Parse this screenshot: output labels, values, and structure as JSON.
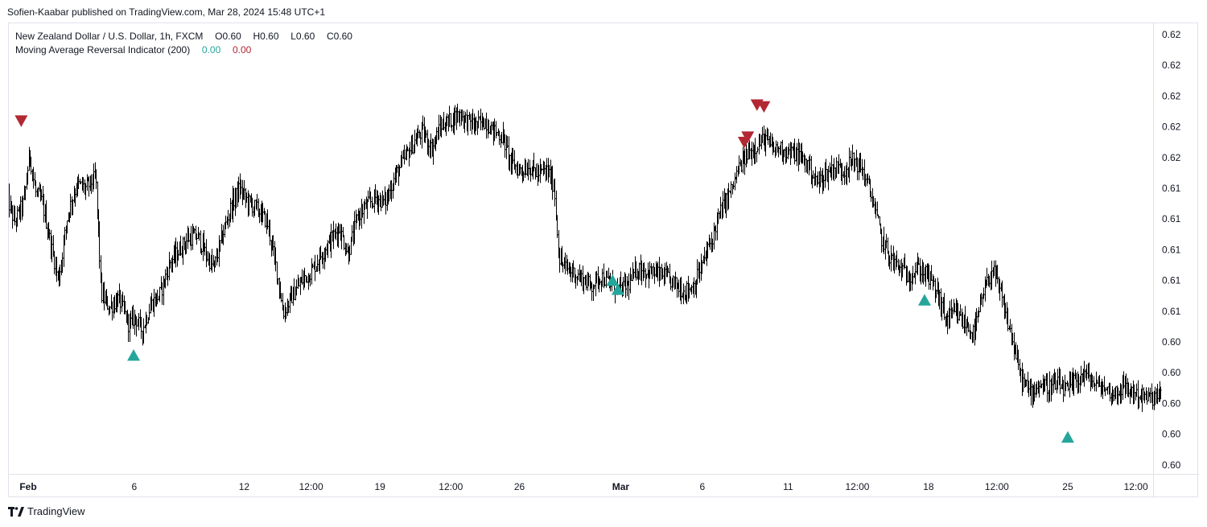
{
  "header": {
    "publish_line": "Sofien-Kaabar published on TradingView.com, Mar 28, 2024 15:48 UTC+1"
  },
  "legend": {
    "symbol_line": "New Zealand Dollar / U.S. Dollar, 1h, FXCM",
    "ohlc": {
      "open": "O0.60",
      "high": "H0.60",
      "low": "L0.60",
      "close": "C0.60"
    },
    "indicator_name": "Moving Average Reversal Indicator (200)",
    "indicator_value_up": "0.00",
    "indicator_value_down": "0.00"
  },
  "footer": {
    "brand": "TradingView"
  },
  "colors": {
    "up_marker": "#26a69a",
    "down_marker": "#b22833",
    "bars": "#000000",
    "border": "#e0e3eb"
  },
  "chart_data": {
    "type": "line",
    "title": "New Zealand Dollar / U.S. Dollar, 1h, FXCM",
    "y_tick_labels": [
      "0.62",
      "0.62",
      "0.62",
      "0.62",
      "0.62",
      "0.61",
      "0.61",
      "0.61",
      "0.61",
      "0.61",
      "0.60",
      "0.60",
      "0.60",
      "0.60",
      "0.60"
    ],
    "x_tick_labels": [
      {
        "label": "Feb",
        "bold": true,
        "t": 0.0
      },
      {
        "label": "6",
        "bold": false,
        "t": 4.58
      },
      {
        "label": "12",
        "bold": false,
        "t": 9.32
      },
      {
        "label": "12:00",
        "bold": false,
        "t": 12.21
      },
      {
        "label": "19",
        "bold": false,
        "t": 15.18
      },
      {
        "label": "12:00",
        "bold": false,
        "t": 18.24
      },
      {
        "label": "26",
        "bold": false,
        "t": 21.2
      },
      {
        "label": "Mar",
        "bold": true,
        "t": 25.57
      },
      {
        "label": "6",
        "bold": false,
        "t": 29.09
      },
      {
        "label": "11",
        "bold": false,
        "t": 32.79
      },
      {
        "label": "12:00",
        "bold": false,
        "t": 35.78
      },
      {
        "label": "18",
        "bold": false,
        "t": 38.85
      },
      {
        "label": "12:00",
        "bold": false,
        "t": 41.8
      },
      {
        "label": "25",
        "bold": false,
        "t": 44.86
      },
      {
        "label": "12:00",
        "bold": false,
        "t": 47.8
      }
    ],
    "price_path": [
      [
        -0.93,
        0.6115
      ],
      [
        -0.6,
        0.6101
      ],
      [
        -0.2,
        0.6112
      ],
      [
        0.05,
        0.614
      ],
      [
        0.3,
        0.6118
      ],
      [
        0.6,
        0.6112
      ],
      [
        0.95,
        0.609
      ],
      [
        1.3,
        0.6068
      ],
      [
        1.7,
        0.6106
      ],
      [
        2.1,
        0.6122
      ],
      [
        2.5,
        0.612
      ],
      [
        2.9,
        0.6126
      ],
      [
        3.15,
        0.606
      ],
      [
        3.5,
        0.6053
      ],
      [
        3.9,
        0.6058
      ],
      [
        4.35,
        0.6043
      ],
      [
        4.6,
        0.6048
      ],
      [
        4.9,
        0.604
      ],
      [
        5.3,
        0.6055
      ],
      [
        5.7,
        0.6061
      ],
      [
        6.1,
        0.6078
      ],
      [
        6.5,
        0.6085
      ],
      [
        6.9,
        0.6092
      ],
      [
        7.3,
        0.6093
      ],
      [
        7.7,
        0.6082
      ],
      [
        8.0,
        0.6075
      ],
      [
        8.3,
        0.609
      ],
      [
        8.7,
        0.6108
      ],
      [
        9.1,
        0.612
      ],
      [
        9.5,
        0.6112
      ],
      [
        9.9,
        0.6108
      ],
      [
        10.3,
        0.6101
      ],
      [
        10.7,
        0.6075
      ],
      [
        11.0,
        0.605
      ],
      [
        11.4,
        0.606
      ],
      [
        11.8,
        0.6068
      ],
      [
        12.2,
        0.6073
      ],
      [
        12.6,
        0.6082
      ],
      [
        13.0,
        0.609
      ],
      [
        13.4,
        0.6098
      ],
      [
        13.8,
        0.6083
      ],
      [
        14.2,
        0.6104
      ],
      [
        14.6,
        0.611
      ],
      [
        15.0,
        0.6115
      ],
      [
        15.4,
        0.6112
      ],
      [
        15.8,
        0.6126
      ],
      [
        16.2,
        0.6136
      ],
      [
        16.6,
        0.6145
      ],
      [
        17.0,
        0.6152
      ],
      [
        17.4,
        0.6142
      ],
      [
        17.8,
        0.6155
      ],
      [
        18.2,
        0.6158
      ],
      [
        18.6,
        0.6162
      ],
      [
        18.9,
        0.6158
      ],
      [
        19.3,
        0.6155
      ],
      [
        19.7,
        0.6158
      ],
      [
        20.1,
        0.6152
      ],
      [
        20.5,
        0.6148
      ],
      [
        20.8,
        0.6135
      ],
      [
        21.2,
        0.613
      ],
      [
        21.6,
        0.6132
      ],
      [
        22.0,
        0.6128
      ],
      [
        22.4,
        0.613
      ],
      [
        22.7,
        0.612
      ],
      [
        22.9,
        0.608
      ],
      [
        23.2,
        0.6075
      ],
      [
        23.6,
        0.6072
      ],
      [
        24.0,
        0.6068
      ],
      [
        24.3,
        0.6065
      ],
      [
        24.7,
        0.6071
      ],
      [
        25.1,
        0.6066
      ],
      [
        25.5,
        0.6063
      ],
      [
        25.9,
        0.6066
      ],
      [
        26.3,
        0.6075
      ],
      [
        26.7,
        0.6073
      ],
      [
        27.1,
        0.6072
      ],
      [
        27.5,
        0.607
      ],
      [
        27.9,
        0.6066
      ],
      [
        28.3,
        0.6062
      ],
      [
        28.7,
        0.6065
      ],
      [
        29.1,
        0.6078
      ],
      [
        29.5,
        0.6092
      ],
      [
        29.9,
        0.6108
      ],
      [
        30.3,
        0.6118
      ],
      [
        30.7,
        0.6132
      ],
      [
        31.1,
        0.614
      ],
      [
        31.5,
        0.6145
      ],
      [
        31.8,
        0.6148
      ],
      [
        32.1,
        0.6142
      ],
      [
        32.5,
        0.6142
      ],
      [
        32.9,
        0.614
      ],
      [
        33.3,
        0.6138
      ],
      [
        33.7,
        0.6132
      ],
      [
        34.0,
        0.6123
      ],
      [
        34.4,
        0.6128
      ],
      [
        34.8,
        0.6132
      ],
      [
        35.2,
        0.613
      ],
      [
        35.6,
        0.6136
      ],
      [
        36.0,
        0.613
      ],
      [
        36.4,
        0.6115
      ],
      [
        36.8,
        0.6092
      ],
      [
        37.2,
        0.6081
      ],
      [
        37.6,
        0.6075
      ],
      [
        38.0,
        0.6071
      ],
      [
        38.4,
        0.6075
      ],
      [
        38.8,
        0.6071
      ],
      [
        39.2,
        0.6062
      ],
      [
        39.6,
        0.6046
      ],
      [
        40.0,
        0.605
      ],
      [
        40.4,
        0.6044
      ],
      [
        40.8,
        0.6038
      ],
      [
        41.2,
        0.606
      ],
      [
        41.6,
        0.6075
      ],
      [
        42.0,
        0.6058
      ],
      [
        42.4,
        0.6038
      ],
      [
        42.8,
        0.6015
      ],
      [
        43.2,
        0.6005
      ],
      [
        43.6,
        0.601
      ],
      [
        44.0,
        0.6008
      ],
      [
        44.4,
        0.601
      ],
      [
        44.8,
        0.6006
      ],
      [
        45.2,
        0.6012
      ],
      [
        45.6,
        0.6016
      ],
      [
        46.0,
        0.601
      ],
      [
        46.4,
        0.6008
      ],
      [
        46.8,
        0.6004
      ],
      [
        47.2,
        0.6008
      ],
      [
        47.6,
        0.6006
      ],
      [
        48.0,
        0.6003
      ],
      [
        48.4,
        0.6002
      ],
      [
        48.9,
        0.6004
      ]
    ],
    "reversal_signals": {
      "bullish": [
        [
          4.55,
          0.6026
        ],
        [
          25.22,
          0.6068
        ],
        [
          25.45,
          0.6063
        ],
        [
          38.68,
          0.6057
        ],
        [
          44.86,
          0.598
        ]
      ],
      "bearish": [
        [
          -0.3,
          0.6158
        ],
        [
          30.9,
          0.6146
        ],
        [
          31.05,
          0.6149
        ],
        [
          31.45,
          0.6167
        ],
        [
          31.75,
          0.6166
        ]
      ]
    }
  }
}
